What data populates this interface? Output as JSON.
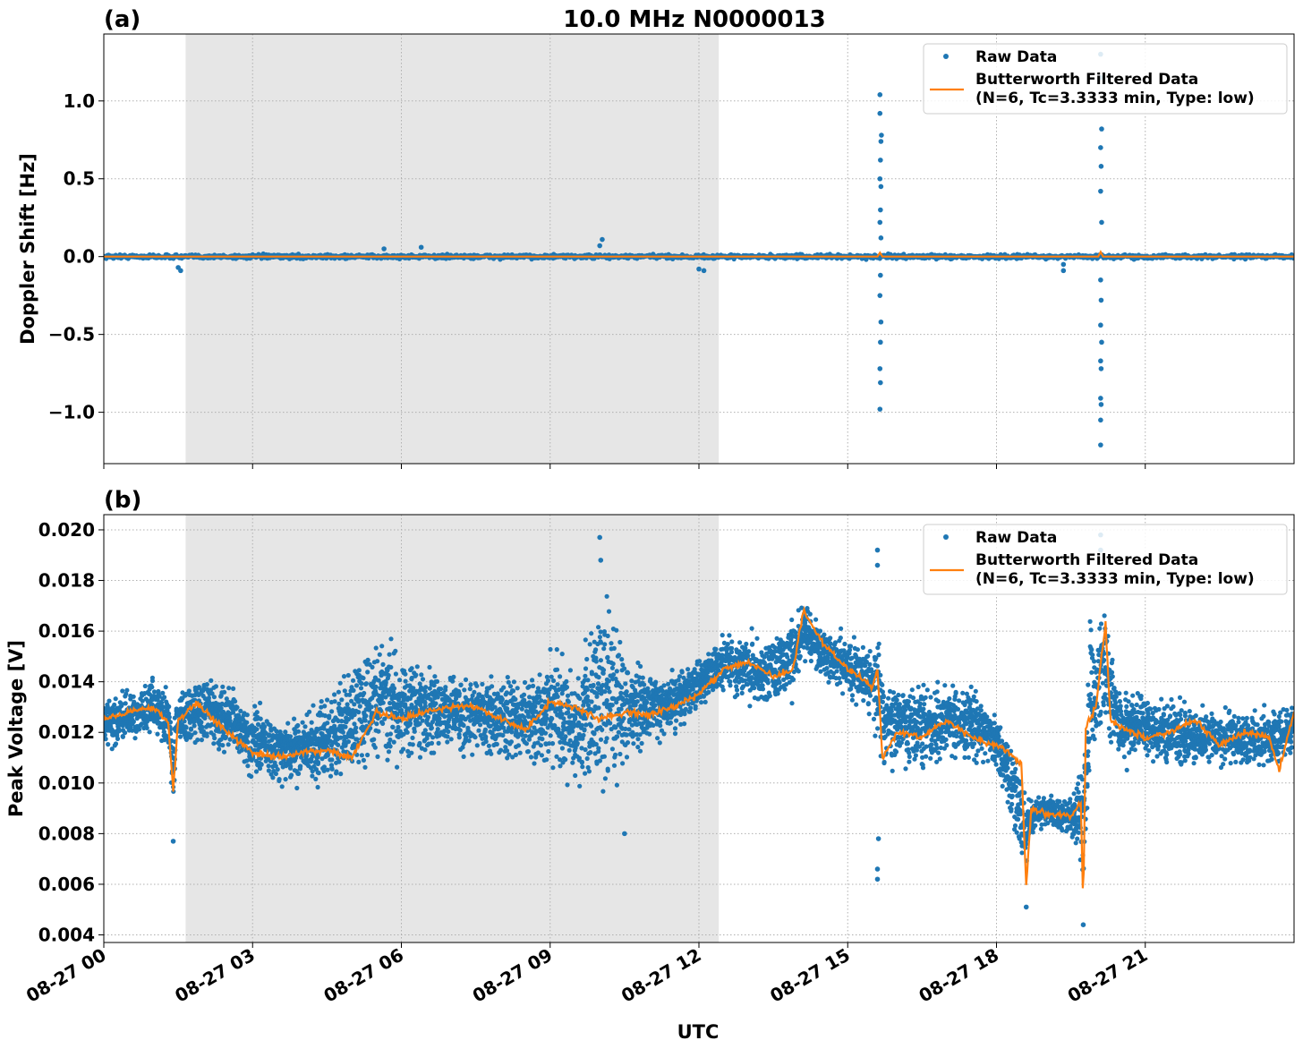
{
  "figure": {
    "title": "10.0 MHz N0000013",
    "xlabel": "UTC"
  },
  "chart_data": [
    {
      "type": "scatter",
      "panel_label": "(a)",
      "ylabel": "Doppler Shift [Hz]",
      "xlim": [
        0,
        24
      ],
      "ylim": [
        -1.33,
        1.43
      ],
      "x_ticks": [
        0,
        3,
        6,
        9,
        12,
        15,
        18,
        21
      ],
      "x_tick_labels": [
        "08-27 00",
        "08-27 03",
        "08-27 06",
        "08-27 09",
        "08-27 12",
        "08-27 15",
        "08-27 18",
        "08-27 21"
      ],
      "y_ticks": [
        -1.0,
        -0.5,
        0.0,
        0.5,
        1.0
      ],
      "y_tick_labels": [
        "−1.0",
        "−0.5",
        "0.0",
        "0.5",
        "1.0"
      ],
      "grid": true,
      "legend_position": "top-right",
      "shaded_interval_hours": [
        1.65,
        12.4
      ],
      "shade_color": "#e6e6e6",
      "series": [
        {
          "name": "Raw Data",
          "style": "dots",
          "color": "#1f77b4",
          "baseline_band": [
            -0.02,
            0.02
          ],
          "outliers": [
            {
              "x": 1.5,
              "y": -0.07
            },
            {
              "x": 1.55,
              "y": -0.09
            },
            {
              "x": 5.65,
              "y": 0.05
            },
            {
              "x": 6.4,
              "y": 0.06
            },
            {
              "x": 10.0,
              "y": 0.07
            },
            {
              "x": 10.05,
              "y": 0.11
            },
            {
              "x": 12.0,
              "y": -0.08
            },
            {
              "x": 12.1,
              "y": -0.09
            },
            {
              "x": 15.65,
              "y": 1.04
            },
            {
              "x": 15.65,
              "y": 0.92
            },
            {
              "x": 15.68,
              "y": 0.78
            },
            {
              "x": 15.67,
              "y": 0.74
            },
            {
              "x": 15.66,
              "y": 0.62
            },
            {
              "x": 15.65,
              "y": 0.5
            },
            {
              "x": 15.67,
              "y": 0.45
            },
            {
              "x": 15.66,
              "y": 0.3
            },
            {
              "x": 15.65,
              "y": 0.22
            },
            {
              "x": 15.67,
              "y": 0.12
            },
            {
              "x": 15.66,
              "y": -0.12
            },
            {
              "x": 15.65,
              "y": -0.25
            },
            {
              "x": 15.67,
              "y": -0.42
            },
            {
              "x": 15.66,
              "y": -0.55
            },
            {
              "x": 15.65,
              "y": -0.72
            },
            {
              "x": 15.66,
              "y": -0.81
            },
            {
              "x": 15.65,
              "y": -0.98
            },
            {
              "x": 20.1,
              "y": 1.3
            },
            {
              "x": 20.1,
              "y": 1.15
            },
            {
              "x": 20.12,
              "y": 0.82
            },
            {
              "x": 20.1,
              "y": 0.7
            },
            {
              "x": 20.11,
              "y": 0.58
            },
            {
              "x": 20.1,
              "y": 0.42
            },
            {
              "x": 20.12,
              "y": 0.22
            },
            {
              "x": 20.1,
              "y": -0.15
            },
            {
              "x": 20.11,
              "y": -0.28
            },
            {
              "x": 20.1,
              "y": -0.44
            },
            {
              "x": 20.12,
              "y": -0.55
            },
            {
              "x": 20.1,
              "y": -0.67
            },
            {
              "x": 20.11,
              "y": -0.72
            },
            {
              "x": 20.1,
              "y": -0.91
            },
            {
              "x": 20.11,
              "y": -0.95
            },
            {
              "x": 20.1,
              "y": -1.05
            },
            {
              "x": 20.1,
              "y": -1.21
            },
            {
              "x": 19.35,
              "y": -0.05
            },
            {
              "x": 19.35,
              "y": -0.09
            }
          ]
        },
        {
          "name": "Butterworth Filtered Data\n(N=6, Tc=3.3333 min, Type: low)",
          "style": "line",
          "color": "#ff7f0e",
          "x": [
            0,
            15.6,
            15.65,
            15.7,
            20.05,
            20.1,
            20.15,
            24
          ],
          "y": [
            0.0,
            0.0,
            0.025,
            0.0,
            0.0,
            0.03,
            0.0,
            0.0
          ]
        }
      ]
    },
    {
      "type": "scatter",
      "panel_label": "(b)",
      "ylabel": "Peak Voltage [V]",
      "xlim": [
        0,
        24
      ],
      "ylim": [
        0.0037,
        0.0206
      ],
      "x_ticks": [
        0,
        3,
        6,
        9,
        12,
        15,
        18,
        21
      ],
      "x_tick_labels": [
        "08-27 00",
        "08-27 03",
        "08-27 06",
        "08-27 09",
        "08-27 12",
        "08-27 15",
        "08-27 18",
        "08-27 21"
      ],
      "y_ticks": [
        0.004,
        0.006,
        0.008,
        0.01,
        0.012,
        0.014,
        0.016,
        0.018,
        0.02
      ],
      "y_tick_labels": [
        "0.004",
        "0.006",
        "0.008",
        "0.010",
        "0.012",
        "0.014",
        "0.016",
        "0.018",
        "0.020"
      ],
      "grid": true,
      "legend_position": "top-right",
      "shaded_interval_hours": [
        1.65,
        12.4
      ],
      "shade_color": "#e6e6e6",
      "series": [
        {
          "name": "Raw Data",
          "style": "band",
          "color": "#1f77b4",
          "x": [
            0,
            0.5,
            1.0,
            1.35,
            1.4,
            1.45,
            2.0,
            2.5,
            3.0,
            3.5,
            4.0,
            4.5,
            5.0,
            5.5,
            6.0,
            6.5,
            7.0,
            7.5,
            8.0,
            8.5,
            9.0,
            9.5,
            10.0,
            10.5,
            11.0,
            11.5,
            12.0,
            12.5,
            13.0,
            13.5,
            14.0,
            14.1,
            14.5,
            15.0,
            15.5,
            15.65,
            15.7,
            16.0,
            16.5,
            17.0,
            17.5,
            18.0,
            18.5,
            18.6,
            18.7,
            19.0,
            19.5,
            19.7,
            19.75,
            19.9,
            20.0,
            20.1,
            20.3,
            20.5,
            21.0,
            21.5,
            22.0,
            22.5,
            23.0,
            23.5,
            24.0
          ],
          "low": [
            0.011,
            0.0112,
            0.0115,
            0.0105,
            0.0078,
            0.011,
            0.011,
            0.0105,
            0.0095,
            0.0095,
            0.0092,
            0.009,
            0.0092,
            0.0095,
            0.01,
            0.0102,
            0.0105,
            0.0105,
            0.0102,
            0.01,
            0.0095,
            0.0085,
            0.0078,
            0.0095,
            0.0108,
            0.0115,
            0.0125,
            0.013,
            0.0125,
            0.0122,
            0.013,
            0.0145,
            0.0135,
            0.0128,
            0.012,
            0.0095,
            0.01,
            0.01,
            0.0095,
            0.0105,
            0.01,
            0.01,
            0.006,
            0.0052,
            0.0075,
            0.0078,
            0.0075,
            0.006,
            0.0045,
            0.0095,
            0.01,
            0.0105,
            0.0105,
            0.0102,
            0.0105,
            0.01,
            0.01,
            0.0102,
            0.0102,
            0.01,
            0.0105
          ],
          "high": [
            0.0138,
            0.014,
            0.0145,
            0.014,
            0.0118,
            0.014,
            0.015,
            0.0145,
            0.0138,
            0.0132,
            0.0135,
            0.014,
            0.0158,
            0.0173,
            0.016,
            0.0155,
            0.015,
            0.015,
            0.015,
            0.015,
            0.016,
            0.016,
            0.0197,
            0.0165,
            0.015,
            0.015,
            0.0155,
            0.0162,
            0.0165,
            0.0165,
            0.0178,
            0.0178,
            0.0168,
            0.0165,
            0.016,
            0.0175,
            0.015,
            0.015,
            0.0148,
            0.0145,
            0.0145,
            0.0135,
            0.0115,
            0.011,
            0.01,
            0.01,
            0.0098,
            0.0115,
            0.013,
            0.018,
            0.0165,
            0.0198,
            0.016,
            0.014,
            0.0142,
            0.014,
            0.0135,
            0.0135,
            0.0132,
            0.0135,
            0.0138
          ],
          "outliers": [
            {
              "x": 10.0,
              "y": 0.0197
            },
            {
              "x": 10.02,
              "y": 0.0188
            },
            {
              "x": 10.5,
              "y": 0.008
            },
            {
              "x": 15.6,
              "y": 0.0192
            },
            {
              "x": 15.6,
              "y": 0.0186
            },
            {
              "x": 15.6,
              "y": 0.0062
            },
            {
              "x": 15.6,
              "y": 0.0066
            },
            {
              "x": 15.62,
              "y": 0.0078
            },
            {
              "x": 20.1,
              "y": 0.0198
            },
            {
              "x": 20.1,
              "y": 0.0192
            },
            {
              "x": 1.4,
              "y": 0.0077
            },
            {
              "x": 18.6,
              "y": 0.0051
            },
            {
              "x": 19.75,
              "y": 0.0044
            }
          ]
        },
        {
          "name": "Butterworth Filtered Data\n(N=6, Tc=3.3333 min, Type: low)",
          "style": "line",
          "color": "#ff7f0e",
          "x": [
            0,
            0.5,
            1.0,
            1.3,
            1.4,
            1.5,
            1.9,
            2.0,
            2.5,
            3.0,
            3.5,
            4.0,
            4.5,
            5.0,
            5.5,
            6.0,
            6.5,
            7.0,
            7.5,
            8.0,
            8.5,
            9.0,
            9.5,
            10.0,
            10.5,
            11.0,
            11.5,
            12.0,
            12.5,
            13.0,
            13.5,
            13.9,
            14.1,
            14.5,
            15.0,
            15.5,
            15.6,
            15.7,
            16.0,
            16.5,
            17.0,
            17.5,
            18.0,
            18.5,
            18.6,
            18.7,
            19.0,
            19.5,
            19.7,
            19.75,
            19.8,
            20.0,
            20.2,
            20.3,
            20.5,
            21.0,
            21.5,
            22.0,
            22.5,
            23.0,
            23.5,
            23.7,
            24.0
          ],
          "y": [
            0.0125,
            0.0128,
            0.013,
            0.0124,
            0.0097,
            0.0125,
            0.0132,
            0.0129,
            0.012,
            0.0112,
            0.011,
            0.0112,
            0.0113,
            0.011,
            0.0128,
            0.0125,
            0.0128,
            0.013,
            0.013,
            0.0125,
            0.0121,
            0.0132,
            0.013,
            0.0125,
            0.0128,
            0.0127,
            0.013,
            0.0135,
            0.0145,
            0.0148,
            0.0142,
            0.0145,
            0.0168,
            0.0155,
            0.0145,
            0.0138,
            0.0145,
            0.011,
            0.012,
            0.0118,
            0.0125,
            0.0118,
            0.0115,
            0.0108,
            0.006,
            0.009,
            0.0088,
            0.0087,
            0.0092,
            0.005,
            0.0122,
            0.013,
            0.0163,
            0.0125,
            0.0122,
            0.0118,
            0.012,
            0.0125,
            0.0115,
            0.012,
            0.0118,
            0.0105,
            0.0128
          ]
        }
      ]
    }
  ]
}
